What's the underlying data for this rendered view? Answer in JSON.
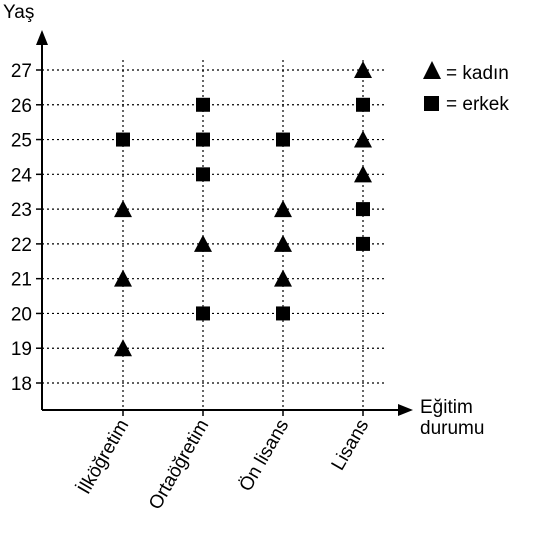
{
  "chart_data": {
    "type": "scatter",
    "ylabel": "Yaş",
    "xlabel_lines": [
      "Eğitim",
      "durumu"
    ],
    "categories": [
      "İlköğretim",
      "Ortaöğretim",
      "Ön lisans",
      "Lisans"
    ],
    "yticks": [
      18,
      19,
      20,
      21,
      22,
      23,
      24,
      25,
      26,
      27
    ],
    "ylim": [
      17.2,
      28
    ],
    "grid": "dotted",
    "legend_position": "top-right",
    "legend": [
      {
        "marker": "triangle",
        "label": "= kadın"
      },
      {
        "marker": "square",
        "label": "= erkek"
      }
    ],
    "series": [
      {
        "marker": "triangle",
        "points": [
          {
            "x": "İlköğretim",
            "y": 19
          },
          {
            "x": "İlköğretim",
            "y": 21
          },
          {
            "x": "İlköğretim",
            "y": 23
          },
          {
            "x": "Ortaöğretim",
            "y": 22
          },
          {
            "x": "Ön lisans",
            "y": 21
          },
          {
            "x": "Ön lisans",
            "y": 22
          },
          {
            "x": "Ön lisans",
            "y": 23
          },
          {
            "x": "Lisans",
            "y": 24
          },
          {
            "x": "Lisans",
            "y": 25
          },
          {
            "x": "Lisans",
            "y": 27
          }
        ]
      },
      {
        "marker": "square",
        "points": [
          {
            "x": "İlköğretim",
            "y": 25
          },
          {
            "x": "Ortaöğretim",
            "y": 20
          },
          {
            "x": "Ortaöğretim",
            "y": 24
          },
          {
            "x": "Ortaöğretim",
            "y": 25
          },
          {
            "x": "Ortaöğretim",
            "y": 26
          },
          {
            "x": "Ön lisans",
            "y": 20
          },
          {
            "x": "Ön lisans",
            "y": 25
          },
          {
            "x": "Lisans",
            "y": 22
          },
          {
            "x": "Lisans",
            "y": 23
          },
          {
            "x": "Lisans",
            "y": 26
          }
        ]
      }
    ]
  }
}
